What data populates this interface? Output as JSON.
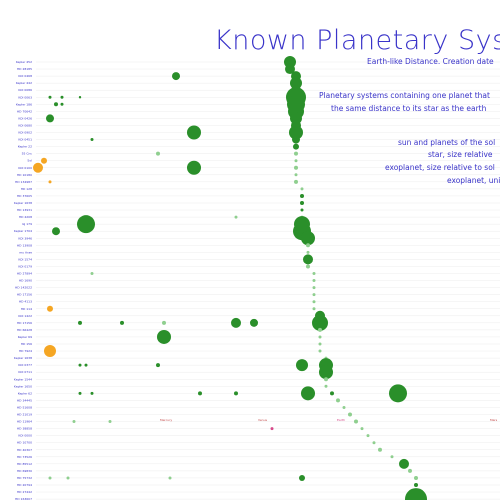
{
  "header": {
    "title": "Known Planetary Syste",
    "subtitle": "Earth-like Distance. Creation date"
  },
  "description": {
    "line1": "Planetary systems containing one planet that",
    "line2": "the same distance to its star as the earth",
    "legend1": "sun and planets of the sol",
    "legend2": "star, size relative",
    "legend3": "exoplanet, size relative to sol",
    "legend4": "exoplanet, uni"
  },
  "colors": {
    "title": "#3a34c9",
    "sol_system": "#f5a623",
    "exoplanet_dark": "#2a8f2a",
    "exoplanet_light": "#8fcf8f",
    "row_line": "#ececec",
    "reference_labels": [
      "#c44b4b",
      "#c44b4b",
      "#d64a8a",
      "#c44b4b"
    ]
  },
  "chart_data": {
    "type": "scatter",
    "title": "Known Planetary Syste",
    "subtitle": "Earth-like Distance. Creation date",
    "xlabel": "",
    "ylabel": "",
    "grid": false,
    "reference_labels": [
      "Mercury",
      "Venus",
      "Earth",
      "Mars"
    ],
    "rows": [
      {
        "label": "Kepler 452",
        "x": 0.49,
        "s": 6,
        "c": "d",
        "planets": []
      },
      {
        "label": "HD 28185",
        "x": 0.49,
        "s": 5,
        "c": "d",
        "planets": []
      },
      {
        "label": "KOI 0468",
        "x": 0.5,
        "s": 5,
        "c": "d",
        "planets": [
          {
            "x": 0.3,
            "s": 4,
            "c": "d"
          }
        ]
      },
      {
        "label": "Kepler 442",
        "x": 0.5,
        "s": 6,
        "c": "d",
        "planets": []
      },
      {
        "label": "KOI 0086",
        "x": 0.5,
        "s": 5,
        "c": "d",
        "planets": []
      },
      {
        "label": "KOI 0063",
        "x": 0.5,
        "s": 10,
        "c": "d",
        "planets": [
          {
            "x": 0.09,
            "s": 1.5,
            "c": "d"
          },
          {
            "x": 0.11,
            "s": 1.5,
            "c": "d"
          },
          {
            "x": 0.14,
            "s": 1.2,
            "c": "d"
          }
        ]
      },
      {
        "label": "Kepler 186",
        "x": 0.5,
        "s": 9,
        "c": "d",
        "planets": [
          {
            "x": 0.1,
            "s": 2,
            "c": "d"
          },
          {
            "x": 0.11,
            "s": 1.5,
            "c": "d"
          }
        ]
      },
      {
        "label": "HD 70642",
        "x": 0.5,
        "s": 8,
        "c": "d",
        "planets": []
      },
      {
        "label": "KOI 0426",
        "x": 0.5,
        "s": 6,
        "c": "d",
        "planets": [
          {
            "x": 0.09,
            "s": 4,
            "c": "d"
          }
        ]
      },
      {
        "label": "KOI 0680",
        "x": 0.5,
        "s": 5,
        "c": "d",
        "planets": []
      },
      {
        "label": "KOI 0902",
        "x": 0.5,
        "s": 7,
        "c": "d",
        "planets": [
          {
            "x": 0.33,
            "s": 7,
            "c": "d"
          }
        ]
      },
      {
        "label": "KOI 0451",
        "x": 0.5,
        "s": 4,
        "c": "d",
        "planets": [
          {
            "x": 0.16,
            "s": 1.5,
            "c": "d"
          }
        ]
      },
      {
        "label": "Kepler 22",
        "x": 0.5,
        "s": 3,
        "c": "d",
        "planets": []
      },
      {
        "label": "55 Cnc",
        "x": 0.5,
        "s": 2,
        "c": "l",
        "planets": [
          {
            "x": 0.27,
            "s": 2,
            "c": "l"
          }
        ]
      },
      {
        "label": "Sol",
        "x": 0.5,
        "s": 1.5,
        "c": "l",
        "planets": [
          {
            "x": 0.08,
            "s": 3,
            "c": "s"
          }
        ]
      },
      {
        "label": "KOI 0100",
        "x": 0.5,
        "s": 2,
        "c": "l",
        "planets": [
          {
            "x": 0.07,
            "s": 5,
            "c": "s"
          },
          {
            "x": 0.33,
            "s": 7,
            "c": "d"
          }
        ]
      },
      {
        "label": "HD 10180",
        "x": 0.5,
        "s": 1.5,
        "c": "l",
        "planets": []
      },
      {
        "label": "HD 134987",
        "x": 0.5,
        "s": 2,
        "c": "l",
        "planets": [
          {
            "x": 0.09,
            "s": 1.5,
            "c": "s"
          }
        ]
      },
      {
        "label": "HD 128",
        "x": 0.51,
        "s": 1.5,
        "c": "l",
        "planets": []
      },
      {
        "label": "HD 37605",
        "x": 0.51,
        "s": 2,
        "c": "d",
        "planets": []
      },
      {
        "label": "Kepler 1638",
        "x": 0.51,
        "s": 2,
        "c": "d",
        "planets": []
      },
      {
        "label": "HD 13931",
        "x": 0.51,
        "s": 1.5,
        "c": "d",
        "planets": []
      },
      {
        "label": "HD 4208",
        "x": 0.51,
        "s": 1.5,
        "c": "l",
        "planets": [
          {
            "x": 0.4,
            "s": 1.5,
            "c": "l"
          }
        ]
      },
      {
        "label": "GJ 179",
        "x": 0.51,
        "s": 8,
        "c": "d",
        "planets": [
          {
            "x": 0.15,
            "s": 9,
            "c": "d"
          }
        ]
      },
      {
        "label": "Kepler 1704",
        "x": 0.51,
        "s": 9,
        "c": "d",
        "planets": [
          {
            "x": 0.1,
            "s": 4,
            "c": "d"
          }
        ]
      },
      {
        "label": "KOI 3946",
        "x": 0.52,
        "s": 7,
        "c": "d",
        "planets": []
      },
      {
        "label": "HD 13908",
        "x": 0.52,
        "s": 2,
        "c": "l",
        "planets": []
      },
      {
        "label": "mu Arae",
        "x": 0.52,
        "s": 1.5,
        "c": "l",
        "planets": []
      },
      {
        "label": "KOI 1574",
        "x": 0.52,
        "s": 5,
        "c": "d",
        "planets": []
      },
      {
        "label": "KOI 0179",
        "x": 0.52,
        "s": 2,
        "c": "l",
        "planets": []
      },
      {
        "label": "HD 27894",
        "x": 0.53,
        "s": 1.5,
        "c": "l",
        "planets": [
          {
            "x": 0.16,
            "s": 1.5,
            "c": "l"
          }
        ]
      },
      {
        "label": "HD 1690",
        "x": 0.53,
        "s": 1.5,
        "c": "l",
        "planets": []
      },
      {
        "label": "HD 142022",
        "x": 0.53,
        "s": 1.5,
        "c": "l",
        "planets": []
      },
      {
        "label": "HD 17156",
        "x": 0.53,
        "s": 1.5,
        "c": "l",
        "planets": []
      },
      {
        "label": "HD 4113",
        "x": 0.53,
        "s": 1.5,
        "c": "l",
        "planets": []
      },
      {
        "label": "HD 114",
        "x": 0.53,
        "s": 1.5,
        "c": "l",
        "planets": [
          {
            "x": 0.09,
            "s": 3,
            "c": "s"
          }
        ]
      },
      {
        "label": "KOI 1422",
        "x": 0.54,
        "s": 5,
        "c": "d",
        "planets": []
      },
      {
        "label": "HD 17156",
        "x": 0.54,
        "s": 8,
        "c": "d",
        "planets": [
          {
            "x": 0.14,
            "s": 2,
            "c": "d"
          },
          {
            "x": 0.21,
            "s": 2,
            "c": "d"
          },
          {
            "x": 0.28,
            "s": 2,
            "c": "l"
          },
          {
            "x": 0.4,
            "s": 5,
            "c": "d"
          },
          {
            "x": 0.43,
            "s": 4,
            "c": "d"
          }
        ]
      },
      {
        "label": "HD 66428",
        "x": 0.54,
        "s": 2,
        "c": "l",
        "planets": []
      },
      {
        "label": "Kepler 69",
        "x": 0.54,
        "s": 1.5,
        "c": "l",
        "planets": [
          {
            "x": 0.28,
            "s": 7,
            "c": "d"
          }
        ]
      },
      {
        "label": "HD 156",
        "x": 0.54,
        "s": 1.5,
        "c": "l",
        "planets": []
      },
      {
        "label": "HD 7924",
        "x": 0.54,
        "s": 1.5,
        "c": "l",
        "planets": [
          {
            "x": 0.09,
            "s": 6,
            "c": "s"
          }
        ]
      },
      {
        "label": "Kepler 1638",
        "x": 0.55,
        "s": 1.5,
        "c": "l",
        "planets": []
      },
      {
        "label": "KOI 0377",
        "x": 0.55,
        "s": 7,
        "c": "d",
        "planets": [
          {
            "x": 0.14,
            "s": 1.5,
            "c": "d"
          },
          {
            "x": 0.15,
            "s": 1.5,
            "c": "d"
          },
          {
            "x": 0.27,
            "s": 2,
            "c": "d"
          },
          {
            "x": 0.51,
            "s": 6,
            "c": "d"
          }
        ]
      },
      {
        "label": "KOI 0711",
        "x": 0.55,
        "s": 7,
        "c": "d",
        "planets": []
      },
      {
        "label": "Kepler 1544",
        "x": 0.55,
        "s": 2,
        "c": "l",
        "planets": []
      },
      {
        "label": "Kepler 1650",
        "x": 0.55,
        "s": 1.5,
        "c": "l",
        "planets": []
      },
      {
        "label": "Kepler 62",
        "x": 0.56,
        "s": 2,
        "c": "d",
        "planets": [
          {
            "x": 0.14,
            "s": 1.5,
            "c": "d"
          },
          {
            "x": 0.16,
            "s": 1.5,
            "c": "d"
          },
          {
            "x": 0.34,
            "s": 2,
            "c": "d"
          },
          {
            "x": 0.4,
            "s": 2,
            "c": "d"
          },
          {
            "x": 0.52,
            "s": 7,
            "c": "d"
          },
          {
            "x": 0.67,
            "s": 9,
            "c": "d"
          }
        ]
      },
      {
        "label": "HD 34445",
        "x": 0.57,
        "s": 2,
        "c": "l",
        "planets": []
      },
      {
        "label": "HD 51608",
        "x": 0.58,
        "s": 1.5,
        "c": "l",
        "planets": []
      },
      {
        "label": "HD 21019",
        "x": 0.59,
        "s": 2,
        "c": "l",
        "planets": []
      },
      {
        "label": "HD 11964",
        "x": 0.6,
        "s": 2,
        "c": "l",
        "planets": [
          {
            "x": 0.13,
            "s": 1.5,
            "c": "l"
          },
          {
            "x": 0.19,
            "s": 1.5,
            "c": "l"
          }
        ]
      },
      {
        "label": "HD 38858",
        "x": 0.61,
        "s": 1.5,
        "c": "l",
        "planets": [
          {
            "x": 0.46,
            "s": 1.5,
            "c": "p"
          }
        ]
      },
      {
        "label": "KOI 0000",
        "x": 0.62,
        "s": 1.5,
        "c": "l",
        "planets": []
      },
      {
        "label": "HD 10700",
        "x": 0.63,
        "s": 1.5,
        "c": "l",
        "planets": []
      },
      {
        "label": "HD 40307",
        "x": 0.64,
        "s": 2,
        "c": "l",
        "planets": []
      },
      {
        "label": "HD 73526",
        "x": 0.66,
        "s": 1.5,
        "c": "l",
        "planets": []
      },
      {
        "label": "HD 85512",
        "x": 0.68,
        "s": 5,
        "c": "d",
        "planets": []
      },
      {
        "label": "HD 69830",
        "x": 0.69,
        "s": 2,
        "c": "l",
        "planets": []
      },
      {
        "label": "HD 75732",
        "x": 0.7,
        "s": 2,
        "c": "l",
        "planets": [
          {
            "x": 0.09,
            "s": 1.5,
            "c": "l"
          },
          {
            "x": 0.12,
            "s": 1.5,
            "c": "l"
          },
          {
            "x": 0.29,
            "s": 1.5,
            "c": "l"
          },
          {
            "x": 0.51,
            "s": 3,
            "c": "d"
          }
        ]
      },
      {
        "label": "HD 20794",
        "x": 0.7,
        "s": 2,
        "c": "d",
        "planets": []
      },
      {
        "label": "HD 27442",
        "x": 0.7,
        "s": 1.5,
        "c": "l",
        "planets": []
      },
      {
        "label": "HD 163607",
        "x": 0.7,
        "s": 11,
        "c": "d",
        "planets": []
      }
    ]
  }
}
